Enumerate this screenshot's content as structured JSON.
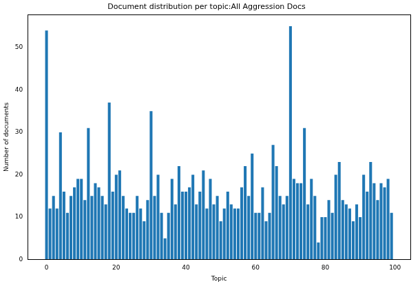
{
  "chart_data": {
    "type": "bar",
    "title": "Document distribution per topic:All Aggression Docs",
    "x_label": "Topic",
    "y_label": "Number of documents",
    "x": [
      0,
      1,
      2,
      3,
      4,
      5,
      6,
      7,
      8,
      9,
      10,
      11,
      12,
      13,
      14,
      15,
      16,
      17,
      18,
      19,
      20,
      21,
      22,
      23,
      24,
      25,
      26,
      27,
      28,
      29,
      30,
      31,
      32,
      33,
      34,
      35,
      36,
      37,
      38,
      39,
      40,
      41,
      42,
      43,
      44,
      45,
      46,
      47,
      48,
      49,
      50,
      51,
      52,
      53,
      54,
      55,
      56,
      57,
      58,
      59,
      60,
      61,
      62,
      63,
      64,
      65,
      66,
      67,
      68,
      69,
      70,
      71,
      72,
      73,
      74,
      75,
      76,
      77,
      78,
      79,
      80,
      81,
      82,
      83,
      84,
      85,
      86,
      87,
      88,
      89,
      90,
      91,
      92,
      93,
      94,
      95,
      96,
      97,
      98,
      99
    ],
    "values": [
      54,
      12,
      15,
      12,
      30,
      16,
      11,
      15,
      17,
      19,
      19,
      14,
      31,
      15,
      18,
      17,
      15,
      13,
      37,
      16,
      20,
      21,
      15,
      12,
      11,
      11,
      15,
      12,
      9,
      14,
      35,
      15,
      20,
      11,
      5,
      11,
      19,
      13,
      22,
      16,
      16,
      17,
      20,
      13,
      16,
      21,
      12,
      19,
      13,
      15,
      9,
      12,
      16,
      13,
      12,
      12,
      17,
      22,
      15,
      25,
      11,
      11,
      17,
      9,
      11,
      27,
      22,
      15,
      13,
      15,
      55,
      19,
      18,
      18,
      31,
      13,
      19,
      15,
      4,
      10,
      10,
      14,
      11,
      20,
      23,
      14,
      13,
      12,
      9,
      13,
      10,
      20,
      16,
      23,
      18,
      14,
      18,
      17,
      19,
      11
    ],
    "color": "#1f77b4",
    "xlim": [
      -5.4,
      104.4
    ],
    "xticks": [
      0,
      20,
      40,
      60,
      80,
      100
    ],
    "ylim": [
      0,
      57.75
    ],
    "yticks": [
      0,
      10,
      20,
      30,
      40,
      50
    ],
    "grid": false
  }
}
